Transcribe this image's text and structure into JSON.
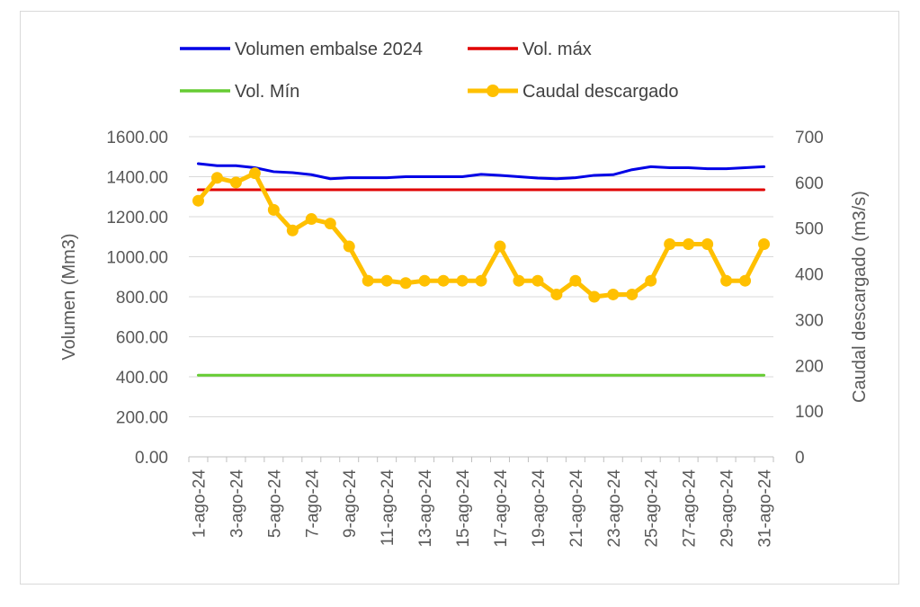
{
  "chart_data": {
    "type": "line",
    "title": "",
    "x": [
      "1-ago-24",
      "2-ago-24",
      "3-ago-24",
      "4-ago-24",
      "5-ago-24",
      "6-ago-24",
      "7-ago-24",
      "8-ago-24",
      "9-ago-24",
      "10-ago-24",
      "11-ago-24",
      "12-ago-24",
      "13-ago-24",
      "14-ago-24",
      "15-ago-24",
      "16-ago-24",
      "17-ago-24",
      "18-ago-24",
      "19-ago-24",
      "20-ago-24",
      "21-ago-24",
      "22-ago-24",
      "23-ago-24",
      "24-ago-24",
      "25-ago-24",
      "26-ago-24",
      "27-ago-24",
      "28-ago-24",
      "29-ago-24",
      "30-ago-24",
      "31-ago-24"
    ],
    "x_tick_labels": [
      "1-ago-24",
      "3-ago-24",
      "5-ago-24",
      "7-ago-24",
      "9-ago-24",
      "11-ago-24",
      "13-ago-24",
      "15-ago-24",
      "17-ago-24",
      "19-ago-24",
      "21-ago-24",
      "23-ago-24",
      "25-ago-24",
      "27-ago-24",
      "29-ago-24",
      "31-ago-24"
    ],
    "ylabel": "Volumen (Mm3)",
    "y2label": "Caudal descargado (m3/s)",
    "ylim": [
      0,
      1600
    ],
    "y2lim": [
      0,
      700
    ],
    "y_ticks": [
      "0.00",
      "200.00",
      "400.00",
      "600.00",
      "800.00",
      "1000.00",
      "1200.00",
      "1400.00",
      "1600.00"
    ],
    "y2_ticks": [
      "0",
      "100",
      "200",
      "300",
      "400",
      "500",
      "600",
      "700"
    ],
    "grid": true,
    "legend_position": "top",
    "series": [
      {
        "name": "Volumen embalse 2024",
        "axis": "left",
        "color": "#0000e6",
        "marker": false,
        "values": [
          1465,
          1455,
          1455,
          1445,
          1425,
          1420,
          1410,
          1390,
          1395,
          1395,
          1395,
          1400,
          1400,
          1400,
          1400,
          1412,
          1407,
          1400,
          1393,
          1390,
          1395,
          1407,
          1410,
          1435,
          1450,
          1445,
          1445,
          1440,
          1440,
          1445,
          1450
        ]
      },
      {
        "name": "Vol. máx",
        "axis": "left",
        "color": "#e00000",
        "marker": false,
        "values": [
          1335,
          1335,
          1335,
          1335,
          1335,
          1335,
          1335,
          1335,
          1335,
          1335,
          1335,
          1335,
          1335,
          1335,
          1335,
          1335,
          1335,
          1335,
          1335,
          1335,
          1335,
          1335,
          1335,
          1335,
          1335,
          1335,
          1335,
          1335,
          1335,
          1335,
          1335
        ]
      },
      {
        "name": "Vol. Mín",
        "axis": "left",
        "color": "#66cc33",
        "marker": false,
        "values": [
          408,
          408,
          408,
          408,
          408,
          408,
          408,
          408,
          408,
          408,
          408,
          408,
          408,
          408,
          408,
          408,
          408,
          408,
          408,
          408,
          408,
          408,
          408,
          408,
          408,
          408,
          408,
          408,
          408,
          408,
          408
        ]
      },
      {
        "name": "Caudal descargado",
        "axis": "right",
        "color": "#ffc000",
        "marker": true,
        "values": [
          560,
          610,
          600,
          620,
          540,
          495,
          520,
          510,
          460,
          385,
          385,
          380,
          385,
          385,
          385,
          385,
          460,
          385,
          385,
          355,
          385,
          350,
          355,
          355,
          385,
          465,
          465,
          465,
          385,
          385,
          465
        ]
      }
    ]
  },
  "legend": {
    "items": [
      {
        "label": "Volumen embalse 2024",
        "color": "#0000e6",
        "marker": false
      },
      {
        "label": "Vol. máx",
        "color": "#e00000",
        "marker": false
      },
      {
        "label": "Vol. Mín",
        "color": "#66cc33",
        "marker": false
      },
      {
        "label": "Caudal descargado",
        "color": "#ffc000",
        "marker": true
      }
    ]
  }
}
